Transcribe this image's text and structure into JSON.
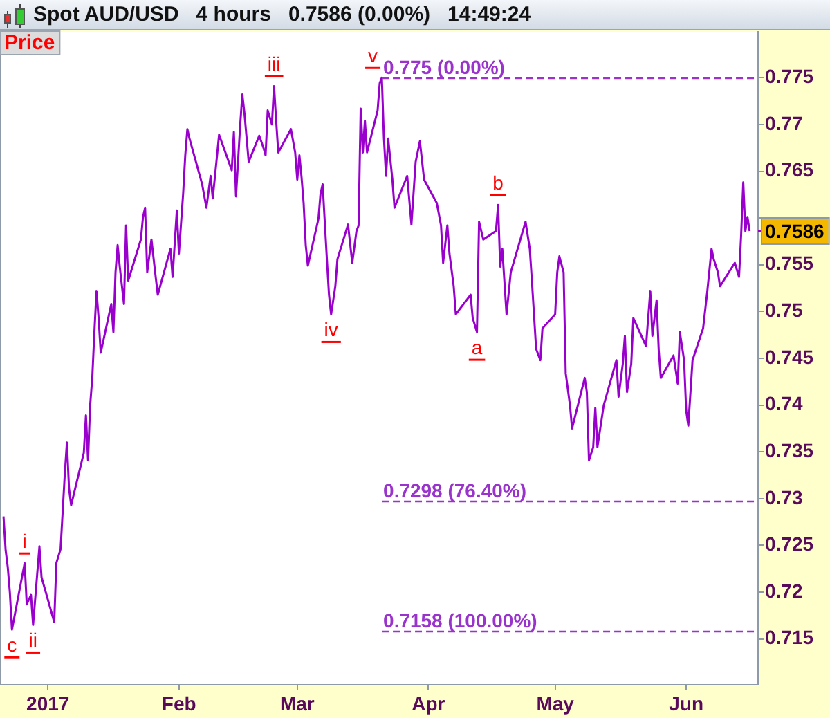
{
  "chart_data": {
    "type": "line",
    "title": "Spot AUD/USD   4 hours   0.7586 (0.00%)   14:49:24",
    "x": [
      "2016-12-21T12:00",
      "2016-12-22",
      "2016-12-22T12:00",
      "2016-12-23",
      "2016-12-23T12:00",
      "2016-12-26T12:00",
      "2016-12-27",
      "2016-12-28",
      "2016-12-28T12:00",
      "2016-12-30",
      "2016-12-30T12:00",
      "2017-01-02T12:00",
      "2017-01-03",
      "2017-01-04",
      "2017-01-04T12:00",
      "2017-01-05",
      "2017-01-05T12:00",
      "2017-01-06",
      "2017-01-06T12:00",
      "2017-01-09T12:00",
      "2017-01-10",
      "2017-01-10T12:00",
      "2017-01-11",
      "2017-01-11T12:00",
      "2017-01-12",
      "2017-01-12T12:00",
      "2017-01-13",
      "2017-01-13T12:00",
      "2017-01-16",
      "2017-01-16T12:00",
      "2017-01-17",
      "2017-01-17T12:00",
      "2017-01-18",
      "2017-01-19",
      "2017-01-19T12:00",
      "2017-01-20",
      "2017-01-23",
      "2017-01-23T12:00",
      "2017-01-24",
      "2017-01-24T12:00",
      "2017-01-25T12:00",
      "2017-01-26T12:00",
      "2017-01-27",
      "2017-01-30",
      "2017-01-30T12:00",
      "2017-01-31T12:00",
      "2017-02-01",
      "2017-02-02",
      "2017-02-02T12:00",
      "2017-02-03",
      "2017-02-03T12:00",
      "2017-02-06T12:00",
      "2017-02-07T12:00",
      "2017-02-08T12:00",
      "2017-02-09",
      "2017-02-10",
      "2017-02-10T12:00",
      "2017-02-13T12:00",
      "2017-02-14",
      "2017-02-14T12:00",
      "2017-02-15T12:00",
      "2017-02-16",
      "2017-02-16T12:00",
      "2017-02-17T12:00",
      "2017-02-20",
      "2017-02-21",
      "2017-02-21T12:00",
      "2017-02-22",
      "2017-02-23",
      "2017-02-23T12:00",
      "2017-02-24",
      "2017-02-24T12:00",
      "2017-02-27T12:00",
      "2017-02-28T12:00",
      "2017-03-01",
      "2017-03-01T12:00",
      "2017-03-02",
      "2017-03-02T12:00",
      "2017-03-03",
      "2017-03-03T12:00",
      "2017-03-06",
      "2017-03-06T12:00",
      "2017-03-07",
      "2017-03-07T12:00",
      "2017-03-08",
      "2017-03-08T12:00",
      "2017-03-09",
      "2017-03-10",
      "2017-03-10T12:00",
      "2017-03-13",
      "2017-03-14",
      "2017-03-15",
      "2017-03-15T12:00",
      "2017-03-16",
      "2017-03-16T12:00",
      "2017-03-17",
      "2017-03-17T12:00",
      "2017-03-20",
      "2017-03-20T12:00",
      "2017-03-21",
      "2017-03-21T12:00",
      "2017-03-22",
      "2017-03-22T12:00",
      "2017-03-23T12:00",
      "2017-03-24",
      "2017-03-27",
      "2017-03-28",
      "2017-03-29",
      "2017-03-30",
      "2017-03-31",
      "2017-04-03",
      "2017-04-04",
      "2017-04-04T12:00",
      "2017-04-05T12:00",
      "2017-04-06",
      "2017-04-07",
      "2017-04-07T12:00",
      "2017-04-11",
      "2017-04-11T12:00",
      "2017-04-12T12:00",
      "2017-04-13",
      "2017-04-14",
      "2017-04-17",
      "2017-04-17T12:00",
      "2017-04-18",
      "2017-04-18T12:00",
      "2017-04-19T12:00",
      "2017-04-20T12:00",
      "2017-04-24",
      "2017-04-25",
      "2017-04-25T12:00",
      "2017-04-26T12:00",
      "2017-04-27T12:00",
      "2017-04-28",
      "2017-05-01",
      "2017-05-01T12:00",
      "2017-05-02",
      "2017-05-03",
      "2017-05-03T12:00",
      "2017-05-04T12:00",
      "2017-05-05",
      "2017-05-08",
      "2017-05-08T12:00",
      "2017-05-09",
      "2017-05-10",
      "2017-05-10T12:00",
      "2017-05-11",
      "2017-05-12T12:00",
      "2017-05-15T12:00",
      "2017-05-16",
      "2017-05-17",
      "2017-05-17T12:00",
      "2017-05-18",
      "2017-05-19",
      "2017-05-19T12:00",
      "2017-05-22T12:00",
      "2017-05-23T12:00",
      "2017-05-24",
      "2017-05-25",
      "2017-05-25T12:00",
      "2017-05-26",
      "2017-05-29",
      "2017-05-30",
      "2017-05-30T12:00",
      "2017-05-31T12:00",
      "2017-06-01",
      "2017-06-01T12:00",
      "2017-06-02T12:00",
      "2017-06-05",
      "2017-06-06",
      "2017-06-07",
      "2017-06-07T12:00",
      "2017-06-08T12:00",
      "2017-06-09",
      "2017-06-12T12:00",
      "2017-06-13T12:00",
      "2017-06-14",
      "2017-06-14T12:00",
      "2017-06-15",
      "2017-06-15T12:00",
      "2017-06-16"
    ],
    "series": [
      {
        "color": "#9900cc",
        "values": [
          0.7281,
          0.7245,
          0.7227,
          0.72,
          0.716,
          0.7231,
          0.7187,
          0.7197,
          0.7165,
          0.7249,
          0.7216,
          0.7168,
          0.7231,
          0.7246,
          0.7286,
          0.7326,
          0.736,
          0.7311,
          0.7293,
          0.7349,
          0.7389,
          0.7341,
          0.74,
          0.7429,
          0.7478,
          0.7522,
          0.7493,
          0.7456,
          0.7508,
          0.7478,
          0.7542,
          0.7571,
          0.7548,
          0.7508,
          0.7592,
          0.7533,
          0.7577,
          0.7601,
          0.7611,
          0.7542,
          0.7577,
          0.7537,
          0.7518,
          0.7567,
          0.7537,
          0.7608,
          0.7562,
          0.7626,
          0.7667,
          0.7695,
          0.7685,
          0.7636,
          0.7611,
          0.7645,
          0.7621,
          0.7666,
          0.7689,
          0.7651,
          0.7692,
          0.7623,
          0.77,
          0.7732,
          0.7712,
          0.766,
          0.7688,
          0.7675,
          0.7667,
          0.7715,
          0.77,
          0.7741,
          0.7704,
          0.767,
          0.7695,
          0.767,
          0.7641,
          0.7667,
          0.7644,
          0.7616,
          0.7571,
          0.7549,
          0.7599,
          0.7626,
          0.7636,
          0.7596,
          0.7556,
          0.7518,
          0.7497,
          0.7527,
          0.7556,
          0.7593,
          0.7552,
          0.7586,
          0.7592,
          0.7717,
          0.767,
          0.7704,
          0.767,
          0.7715,
          0.7744,
          0.775,
          0.7685,
          0.7645,
          0.7685,
          0.7641,
          0.7611,
          0.7645,
          0.7593,
          0.766,
          0.7682,
          0.7641,
          0.7616,
          0.7592,
          0.7552,
          0.7592,
          0.7562,
          0.7527,
          0.7497,
          0.7518,
          0.7493,
          0.7478,
          0.7596,
          0.7577,
          0.7586,
          0.7614,
          0.7548,
          0.7567,
          0.7497,
          0.7542,
          0.7596,
          0.7567,
          0.7533,
          0.746,
          0.7448,
          0.7482,
          0.7497,
          0.7542,
          0.7559,
          0.7542,
          0.7434,
          0.74,
          0.7375,
          0.7429,
          0.7414,
          0.7341,
          0.7355,
          0.7397,
          0.7355,
          0.74,
          0.7448,
          0.7409,
          0.7444,
          0.7474,
          0.7414,
          0.7444,
          0.7493,
          0.7463,
          0.7522,
          0.7474,
          0.7512,
          0.7459,
          0.7429,
          0.7453,
          0.7423,
          0.7478,
          0.7448,
          0.7394,
          0.7378,
          0.7448,
          0.7482,
          0.7522,
          0.7567,
          0.7556,
          0.7542,
          0.7527,
          0.7552,
          0.7537,
          0.7582,
          0.7638,
          0.7586,
          0.7601,
          0.7586
        ]
      }
    ],
    "xlim": [
      "2016-12-21",
      "2017-06-18"
    ],
    "xticks": [
      {
        "value": "2017-01-01",
        "label": "2017"
      },
      {
        "value": "2017-02-01",
        "label": "Feb"
      },
      {
        "value": "2017-03-01",
        "label": "Mar"
      },
      {
        "value": "2017-04-01",
        "label": "Apr"
      },
      {
        "value": "2017-05-01",
        "label": "May"
      },
      {
        "value": "2017-06-01",
        "label": "Jun"
      }
    ],
    "ylim": [
      0.7101,
      0.7799
    ],
    "yticks": [
      0.715,
      0.72,
      0.725,
      0.73,
      0.735,
      0.74,
      0.745,
      0.75,
      0.755,
      {
        "value": 0.76,
        "label": null
      },
      0.765,
      0.77,
      0.775
    ],
    "ref_lines": [
      {
        "axis": "y",
        "value": 0.775,
        "label": "0.775 (0.00%)",
        "color": "#9933cc",
        "line_style": "dashed"
      },
      {
        "axis": "y",
        "value": 0.7298,
        "label": "0.7298 (76.40%)",
        "color": "#9933cc",
        "line_style": "dashed"
      },
      {
        "axis": "y",
        "value": 0.7158,
        "label": "0.7158 (100.00%)",
        "color": "#9933cc",
        "line_style": "dashed"
      }
    ],
    "annotations": [
      "Price",
      {
        "text": "c",
        "x": "2016-12-23T12:00",
        "y": 0.716
      },
      {
        "text": "i",
        "x": "2016-12-26T12:00",
        "y": 0.7231
      },
      {
        "text": "ii",
        "x": "2016-12-28T12:00",
        "y": 0.7165
      },
      {
        "text": "iii",
        "x": "2017-02-23T12:00",
        "y": 0.7741
      },
      {
        "text": "iv",
        "x": "2017-03-09",
        "y": 0.7497
      },
      {
        "text": "v",
        "x": "2017-03-21",
        "y": 0.775
      },
      {
        "text": "a",
        "x": "2017-04-12T12:00",
        "y": 0.7478
      },
      {
        "text": "b",
        "x": "2017-04-17T12:00",
        "y": 0.7614
      },
      {
        "text": "0.7586",
        "x": "2017-06-16",
        "y": 0.7586
      }
    ]
  }
}
